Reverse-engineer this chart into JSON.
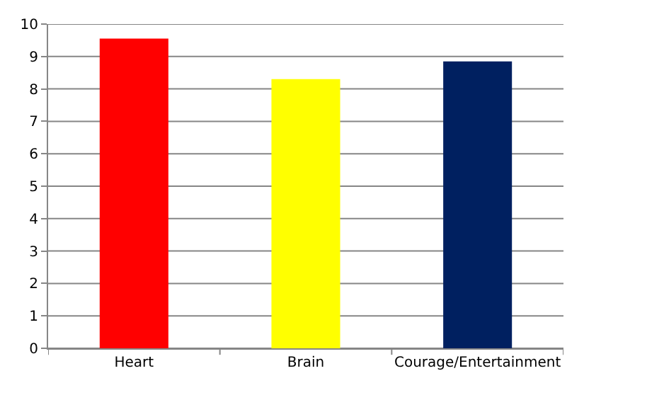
{
  "chart_data": {
    "type": "bar",
    "categories": [
      "Heart",
      "Brain",
      "Courage/Entertainment"
    ],
    "values": [
      9.55,
      8.3,
      8.85
    ],
    "colors": [
      "#ff0000",
      "#ffff00",
      "#002060"
    ],
    "ylim": [
      0,
      10
    ],
    "yticks": [
      0,
      1,
      2,
      3,
      4,
      5,
      6,
      7,
      8,
      9,
      10
    ],
    "grid": "y"
  }
}
